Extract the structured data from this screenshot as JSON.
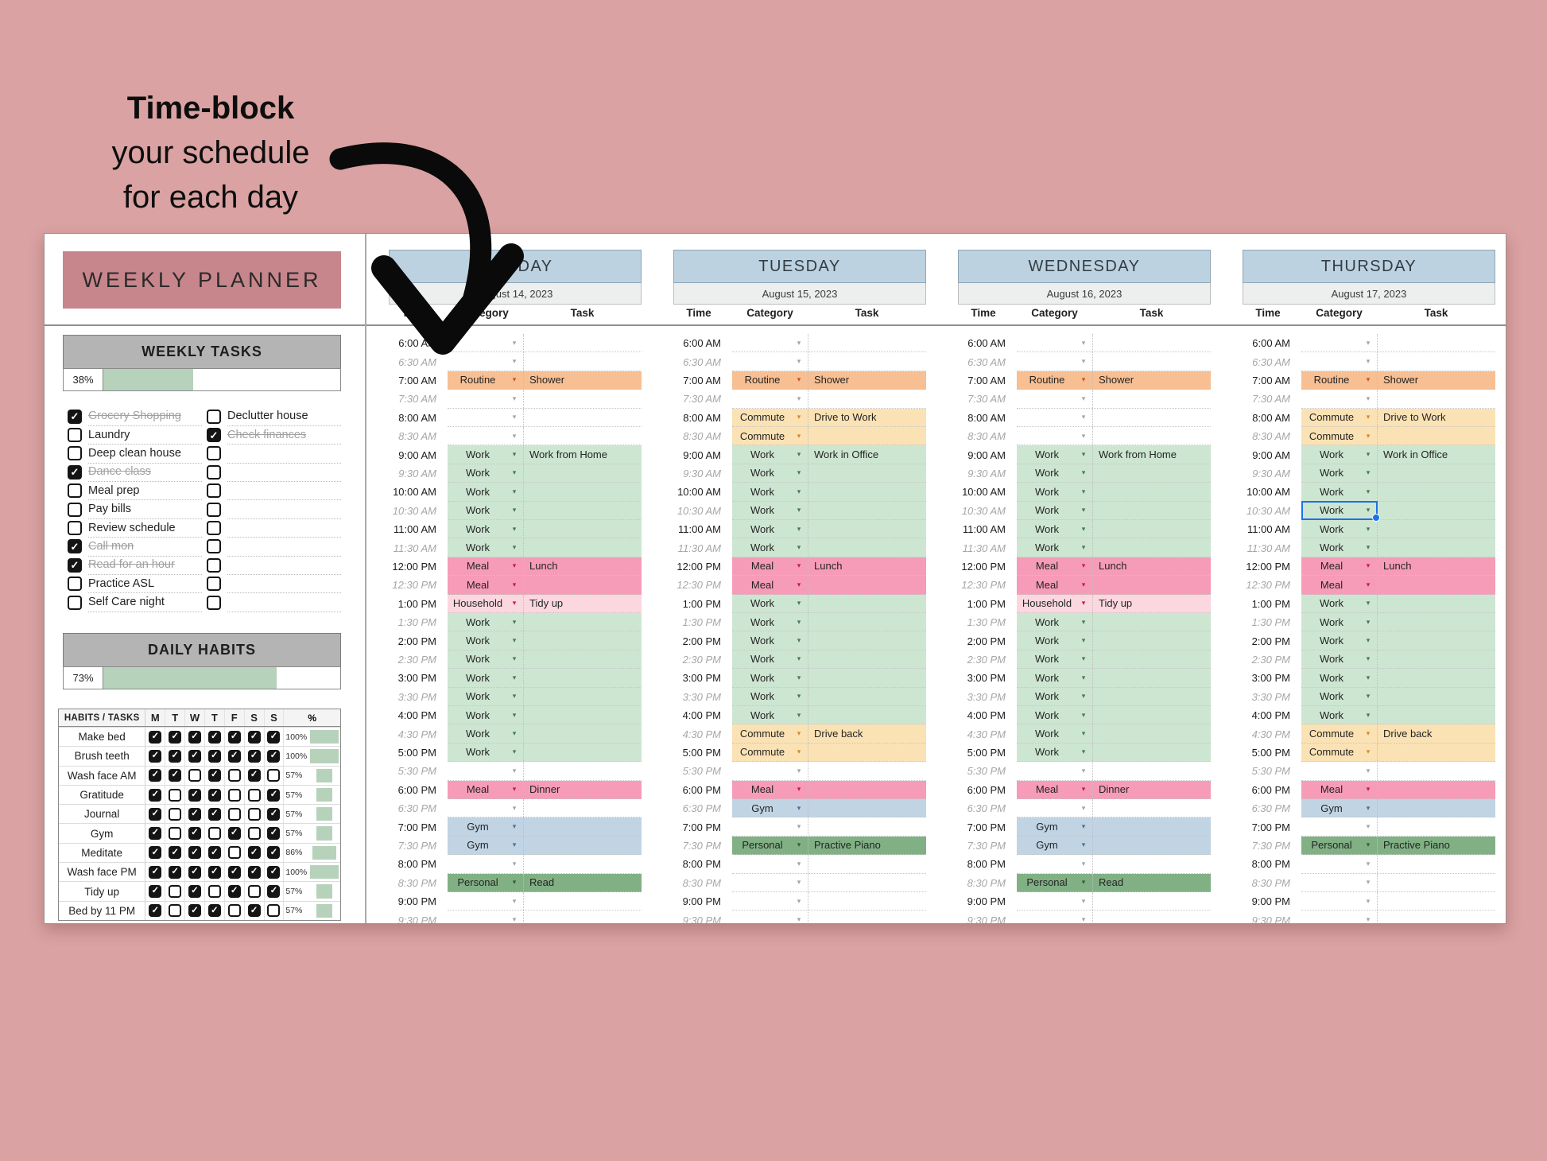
{
  "annotation": {
    "line1": "Time-block",
    "line2": "your schedule",
    "line3": "for each day"
  },
  "colors": {
    "page_background": "#daa2a2",
    "planner_title_bg": "#c7868c",
    "section_header_bg": "#b4b4b4",
    "progress_fill": "#b7d2bb",
    "day_header_bg": "#bcd2e0",
    "date_row_bg": "#edefef",
    "selection_blue": "#1a73e8"
  },
  "left_panel": {
    "title": "WEEKLY PLANNER",
    "weekly_tasks": {
      "header": "WEEKLY TASKS",
      "progress_label": "38%",
      "progress_value": 38,
      "tasks_left": [
        {
          "label": "Grocery Shopping",
          "checked": true
        },
        {
          "label": "Laundry",
          "checked": false
        },
        {
          "label": "Deep clean house",
          "checked": false
        },
        {
          "label": "Dance class",
          "checked": true
        },
        {
          "label": "Meal prep",
          "checked": false
        },
        {
          "label": "Pay bills",
          "checked": false
        },
        {
          "label": "Review schedule",
          "checked": false
        },
        {
          "label": "Call mon",
          "checked": true
        },
        {
          "label": "Read for an hour",
          "checked": true
        },
        {
          "label": "Practice ASL",
          "checked": false
        },
        {
          "label": "Self Care night",
          "checked": false
        }
      ],
      "tasks_right": [
        {
          "label": "Declutter house",
          "checked": false
        },
        {
          "label": "Check finances",
          "checked": true
        },
        {
          "label": "",
          "checked": false
        },
        {
          "label": "",
          "checked": false
        },
        {
          "label": "",
          "checked": false
        },
        {
          "label": "",
          "checked": false
        },
        {
          "label": "",
          "checked": false
        },
        {
          "label": "",
          "checked": false
        },
        {
          "label": "",
          "checked": false
        },
        {
          "label": "",
          "checked": false
        },
        {
          "label": "",
          "checked": false
        }
      ]
    },
    "daily_habits": {
      "header": "DAILY HABITS",
      "progress_label": "73%",
      "progress_value": 73,
      "table": {
        "corner_label": "HABITS / TASKS",
        "day_headers": [
          "M",
          "T",
          "W",
          "T",
          "F",
          "S",
          "S"
        ],
        "pct_header": "%",
        "rows": [
          {
            "label": "Make bed",
            "checks": [
              1,
              1,
              1,
              1,
              1,
              1,
              1
            ],
            "pct": "100%",
            "pct_value": 100
          },
          {
            "label": "Brush teeth",
            "checks": [
              1,
              1,
              1,
              1,
              1,
              1,
              1
            ],
            "pct": "100%",
            "pct_value": 100
          },
          {
            "label": "Wash face AM",
            "checks": [
              1,
              1,
              0,
              1,
              0,
              1,
              0
            ],
            "pct": "57%",
            "pct_value": 57
          },
          {
            "label": "Gratitude",
            "checks": [
              1,
              0,
              1,
              1,
              0,
              0,
              1
            ],
            "pct": "57%",
            "pct_value": 57
          },
          {
            "label": "Journal",
            "checks": [
              1,
              0,
              1,
              1,
              0,
              0,
              1
            ],
            "pct": "57%",
            "pct_value": 57
          },
          {
            "label": "Gym",
            "checks": [
              1,
              0,
              1,
              0,
              1,
              0,
              1
            ],
            "pct": "57%",
            "pct_value": 57
          },
          {
            "label": "Meditate",
            "checks": [
              1,
              1,
              1,
              1,
              0,
              1,
              1
            ],
            "pct": "86%",
            "pct_value": 86
          },
          {
            "label": "Wash face PM",
            "checks": [
              1,
              1,
              1,
              1,
              1,
              1,
              1
            ],
            "pct": "100%",
            "pct_value": 100
          },
          {
            "label": "Tidy up",
            "checks": [
              1,
              0,
              1,
              0,
              1,
              0,
              1
            ],
            "pct": "57%",
            "pct_value": 57
          },
          {
            "label": "Bed by 11 PM",
            "checks": [
              1,
              0,
              1,
              1,
              0,
              1,
              0
            ],
            "pct": "57%",
            "pct_value": 57
          }
        ]
      }
    }
  },
  "schedule": {
    "column_headers": [
      "Time",
      "Category",
      "Task"
    ],
    "times": [
      "6:00 AM",
      "6:30 AM",
      "7:00 AM",
      "7:30 AM",
      "8:00 AM",
      "8:30 AM",
      "9:00 AM",
      "9:30 AM",
      "10:00 AM",
      "10:30 AM",
      "11:00 AM",
      "11:30 AM",
      "12:00 PM",
      "12:30 PM",
      "1:00 PM",
      "1:30 PM",
      "2:00 PM",
      "2:30 PM",
      "3:00 PM",
      "3:30 PM",
      "4:00 PM",
      "4:30 PM",
      "5:00 PM",
      "5:30 PM",
      "6:00 PM",
      "6:30 PM",
      "7:00 PM",
      "7:30 PM",
      "8:00 PM",
      "8:30 PM",
      "9:00 PM",
      "9:30 PM"
    ],
    "palette": {
      "Routine": {
        "bg": "#f8bf92",
        "arrow": "#c05621"
      },
      "Commute": {
        "bg": "#fbe2b4",
        "arrow": "#cf8c2a"
      },
      "Work": {
        "bg": "#cde6d2",
        "arrow": "#45795a"
      },
      "Meal": {
        "bg": "#f69cb8",
        "arrow": "#c2185b"
      },
      "Household": {
        "bg": "#fbd7e0",
        "arrow": "#c2185b"
      },
      "Gym": {
        "bg": "#c0d4e4",
        "arrow": "#4a6f96"
      },
      "Personal": {
        "bg": "#81b085",
        "arrow": "#2f5e3c"
      }
    },
    "empty_arrow_color": "#a3a3a3",
    "selected_cell": {
      "day_index": 3,
      "slot_index": 9
    },
    "days": [
      {
        "name": "MONDAY",
        "date": "August 14, 2023",
        "slots": [
          [
            "",
            ""
          ],
          [
            "",
            ""
          ],
          [
            "Routine",
            "Shower"
          ],
          [
            "",
            ""
          ],
          [
            "",
            ""
          ],
          [
            "",
            ""
          ],
          [
            "Work",
            "Work from Home"
          ],
          [
            "Work",
            ""
          ],
          [
            "Work",
            ""
          ],
          [
            "Work",
            ""
          ],
          [
            "Work",
            ""
          ],
          [
            "Work",
            ""
          ],
          [
            "Meal",
            "Lunch"
          ],
          [
            "Meal",
            ""
          ],
          [
            "Household",
            "Tidy up"
          ],
          [
            "Work",
            ""
          ],
          [
            "Work",
            ""
          ],
          [
            "Work",
            ""
          ],
          [
            "Work",
            ""
          ],
          [
            "Work",
            ""
          ],
          [
            "Work",
            ""
          ],
          [
            "Work",
            ""
          ],
          [
            "Work",
            ""
          ],
          [
            "",
            ""
          ],
          [
            "Meal",
            "Dinner"
          ],
          [
            "",
            ""
          ],
          [
            "Gym",
            ""
          ],
          [
            "Gym",
            ""
          ],
          [
            "",
            ""
          ],
          [
            "Personal",
            "Read"
          ],
          [
            "",
            ""
          ],
          [
            "",
            ""
          ]
        ]
      },
      {
        "name": "TUESDAY",
        "date": "August 15, 2023",
        "slots": [
          [
            "",
            ""
          ],
          [
            "",
            ""
          ],
          [
            "Routine",
            "Shower"
          ],
          [
            "",
            ""
          ],
          [
            "Commute",
            "Drive to Work"
          ],
          [
            "Commute",
            ""
          ],
          [
            "Work",
            "Work in Office"
          ],
          [
            "Work",
            ""
          ],
          [
            "Work",
            ""
          ],
          [
            "Work",
            ""
          ],
          [
            "Work",
            ""
          ],
          [
            "Work",
            ""
          ],
          [
            "Meal",
            "Lunch"
          ],
          [
            "Meal",
            ""
          ],
          [
            "Work",
            ""
          ],
          [
            "Work",
            ""
          ],
          [
            "Work",
            ""
          ],
          [
            "Work",
            ""
          ],
          [
            "Work",
            ""
          ],
          [
            "Work",
            ""
          ],
          [
            "Work",
            ""
          ],
          [
            "Commute",
            "Drive back"
          ],
          [
            "Commute",
            ""
          ],
          [
            "",
            ""
          ],
          [
            "Meal",
            ""
          ],
          [
            "Gym",
            ""
          ],
          [
            "",
            ""
          ],
          [
            "Personal",
            "Practive Piano"
          ],
          [
            "",
            ""
          ],
          [
            "",
            ""
          ],
          [
            "",
            ""
          ],
          [
            "",
            ""
          ]
        ]
      },
      {
        "name": "WEDNESDAY",
        "date": "August 16, 2023",
        "slots": [
          [
            "",
            ""
          ],
          [
            "",
            ""
          ],
          [
            "Routine",
            "Shower"
          ],
          [
            "",
            ""
          ],
          [
            "",
            ""
          ],
          [
            "",
            ""
          ],
          [
            "Work",
            "Work from Home"
          ],
          [
            "Work",
            ""
          ],
          [
            "Work",
            ""
          ],
          [
            "Work",
            ""
          ],
          [
            "Work",
            ""
          ],
          [
            "Work",
            ""
          ],
          [
            "Meal",
            "Lunch"
          ],
          [
            "Meal",
            ""
          ],
          [
            "Household",
            "Tidy up"
          ],
          [
            "Work",
            ""
          ],
          [
            "Work",
            ""
          ],
          [
            "Work",
            ""
          ],
          [
            "Work",
            ""
          ],
          [
            "Work",
            ""
          ],
          [
            "Work",
            ""
          ],
          [
            "Work",
            ""
          ],
          [
            "Work",
            ""
          ],
          [
            "",
            ""
          ],
          [
            "Meal",
            "Dinner"
          ],
          [
            "",
            ""
          ],
          [
            "Gym",
            ""
          ],
          [
            "Gym",
            ""
          ],
          [
            "",
            ""
          ],
          [
            "Personal",
            "Read"
          ],
          [
            "",
            ""
          ],
          [
            "",
            ""
          ]
        ]
      },
      {
        "name": "THURSDAY",
        "date": "August 17, 2023",
        "slots": [
          [
            "",
            ""
          ],
          [
            "",
            ""
          ],
          [
            "Routine",
            "Shower"
          ],
          [
            "",
            ""
          ],
          [
            "Commute",
            "Drive to Work"
          ],
          [
            "Commute",
            ""
          ],
          [
            "Work",
            "Work in Office"
          ],
          [
            "Work",
            ""
          ],
          [
            "Work",
            ""
          ],
          [
            "Work",
            ""
          ],
          [
            "Work",
            ""
          ],
          [
            "Work",
            ""
          ],
          [
            "Meal",
            "Lunch"
          ],
          [
            "Meal",
            ""
          ],
          [
            "Work",
            ""
          ],
          [
            "Work",
            ""
          ],
          [
            "Work",
            ""
          ],
          [
            "Work",
            ""
          ],
          [
            "Work",
            ""
          ],
          [
            "Work",
            ""
          ],
          [
            "Work",
            ""
          ],
          [
            "Commute",
            "Drive back"
          ],
          [
            "Commute",
            ""
          ],
          [
            "",
            ""
          ],
          [
            "Meal",
            ""
          ],
          [
            "Gym",
            ""
          ],
          [
            "",
            ""
          ],
          [
            "Personal",
            "Practive Piano"
          ],
          [
            "",
            ""
          ],
          [
            "",
            ""
          ],
          [
            "",
            ""
          ],
          [
            "",
            ""
          ]
        ]
      }
    ]
  }
}
